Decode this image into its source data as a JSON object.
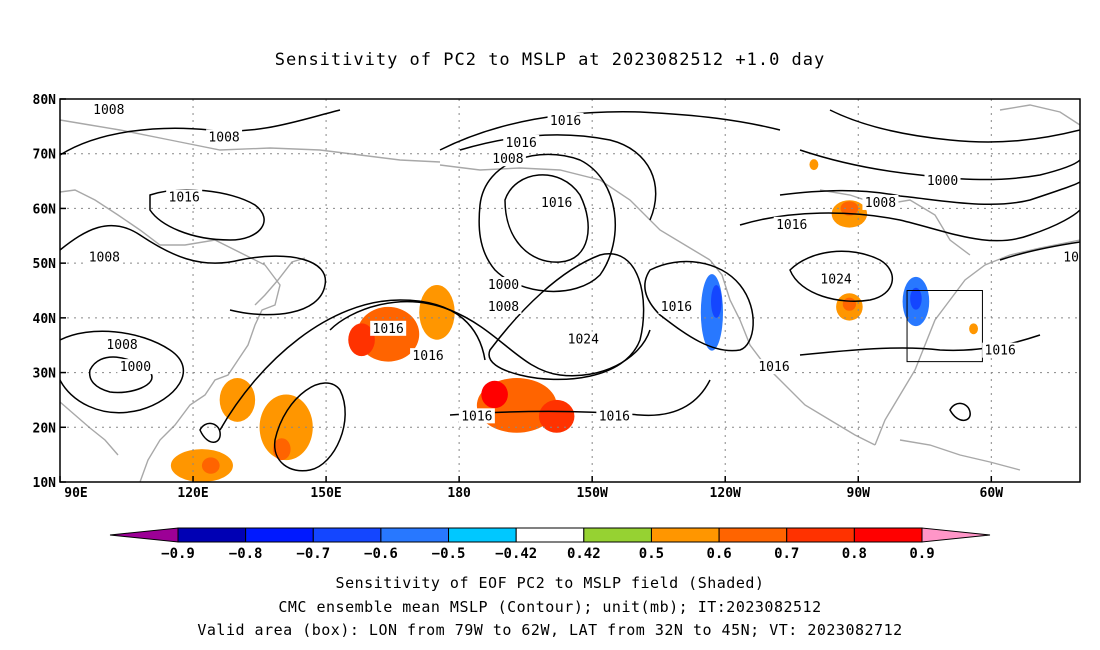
{
  "title": "Sensitivity of PC2 to MSLP at 2023082512 +1.0 day",
  "map": {
    "lat_range": [
      10,
      80
    ],
    "lon_range_east": [
      90,
      320
    ],
    "lat_ticks": [
      {
        "value": 80,
        "label": "80N"
      },
      {
        "value": 70,
        "label": "70N"
      },
      {
        "value": 60,
        "label": "60N"
      },
      {
        "value": 50,
        "label": "50N"
      },
      {
        "value": 40,
        "label": "40N"
      },
      {
        "value": 30,
        "label": "30N"
      },
      {
        "value": 20,
        "label": "20N"
      },
      {
        "value": 10,
        "label": "10N"
      }
    ],
    "lon_ticks": [
      {
        "value": 90,
        "label": "90E"
      },
      {
        "value": 120,
        "label": "120E"
      },
      {
        "value": 150,
        "label": "150E"
      },
      {
        "value": 180,
        "label": "180"
      },
      {
        "value": 210,
        "label": "150W"
      },
      {
        "value": 240,
        "label": "120W"
      },
      {
        "value": 270,
        "label": "90W"
      },
      {
        "value": 300,
        "label": "60W"
      }
    ],
    "gridlines": true,
    "valid_box": {
      "lon_west": 281,
      "lon_east": 298,
      "lat_south": 32,
      "lat_north": 45
    },
    "shaded_regions": [
      {
        "lon": 164,
        "lat": 37,
        "rx": 7,
        "ry": 5,
        "value": 0.6
      },
      {
        "lon": 175,
        "lat": 41,
        "rx": 4,
        "ry": 5,
        "value": 0.5
      },
      {
        "lon": 158,
        "lat": 36,
        "rx": 3,
        "ry": 3,
        "value": 0.7
      },
      {
        "lon": 193,
        "lat": 24,
        "rx": 9,
        "ry": 5,
        "value": 0.6
      },
      {
        "lon": 188,
        "lat": 26,
        "rx": 3,
        "ry": 2.5,
        "value": 0.8
      },
      {
        "lon": 202,
        "lat": 22,
        "rx": 4,
        "ry": 3,
        "value": 0.7
      },
      {
        "lon": 130,
        "lat": 25,
        "rx": 4,
        "ry": 4,
        "value": 0.5
      },
      {
        "lon": 141,
        "lat": 20,
        "rx": 6,
        "ry": 6,
        "value": 0.5
      },
      {
        "lon": 140,
        "lat": 16,
        "rx": 2,
        "ry": 2,
        "value": 0.6
      },
      {
        "lon": 122,
        "lat": 13,
        "rx": 7,
        "ry": 3,
        "value": 0.5
      },
      {
        "lon": 124,
        "lat": 13,
        "rx": 2,
        "ry": 1.5,
        "value": 0.6
      },
      {
        "lon": 237,
        "lat": 41,
        "rx": 2.5,
        "ry": 7,
        "value": -0.6
      },
      {
        "lon": 238,
        "lat": 43,
        "rx": 1.2,
        "ry": 3,
        "value": -0.7
      },
      {
        "lon": 283,
        "lat": 43,
        "rx": 3,
        "ry": 4.5,
        "value": -0.6
      },
      {
        "lon": 283,
        "lat": 43.5,
        "rx": 1.3,
        "ry": 2,
        "value": -0.7
      },
      {
        "lon": 268,
        "lat": 42,
        "rx": 3,
        "ry": 2.5,
        "value": 0.5
      },
      {
        "lon": 268,
        "lat": 42.5,
        "rx": 1.5,
        "ry": 1.2,
        "value": 0.6
      },
      {
        "lon": 268,
        "lat": 59,
        "rx": 4,
        "ry": 2.5,
        "value": 0.5
      },
      {
        "lon": 268,
        "lat": 60,
        "rx": 2,
        "ry": 1.3,
        "value": 0.6
      },
      {
        "lon": 260,
        "lat": 68,
        "rx": 1,
        "ry": 1,
        "value": 0.5
      },
      {
        "lon": 296,
        "lat": 38,
        "rx": 1,
        "ry": 1,
        "value": 0.5
      }
    ],
    "contour_labels": [
      {
        "lon": 101,
        "lat": 78,
        "text": "1008"
      },
      {
        "lon": 127,
        "lat": 73,
        "text": "1008"
      },
      {
        "lon": 118,
        "lat": 62,
        "text": "1016"
      },
      {
        "lon": 100,
        "lat": 51,
        "text": "1008"
      },
      {
        "lon": 104,
        "lat": 35,
        "text": "1008"
      },
      {
        "lon": 107,
        "lat": 31,
        "text": "1000"
      },
      {
        "lon": 204,
        "lat": 76,
        "text": "1016"
      },
      {
        "lon": 194,
        "lat": 72,
        "text": "1016"
      },
      {
        "lon": 191,
        "lat": 69,
        "text": "1008"
      },
      {
        "lon": 202,
        "lat": 61,
        "text": "1016"
      },
      {
        "lon": 190,
        "lat": 46,
        "text": "1000"
      },
      {
        "lon": 190,
        "lat": 42,
        "text": "1008"
      },
      {
        "lon": 208,
        "lat": 36,
        "text": "1024"
      },
      {
        "lon": 229,
        "lat": 42,
        "text": "1016"
      },
      {
        "lon": 251,
        "lat": 31,
        "text": "1016"
      },
      {
        "lon": 164,
        "lat": 38,
        "text": "1016"
      },
      {
        "lon": 173,
        "lat": 33,
        "text": "1016"
      },
      {
        "lon": 184,
        "lat": 22,
        "text": "1016"
      },
      {
        "lon": 215,
        "lat": 22,
        "text": "1016"
      },
      {
        "lon": 255,
        "lat": 57,
        "text": "1016"
      },
      {
        "lon": 275,
        "lat": 61,
        "text": "1008"
      },
      {
        "lon": 289,
        "lat": 65,
        "text": "1000"
      },
      {
        "lon": 265,
        "lat": 47,
        "text": "1024"
      },
      {
        "lon": 302,
        "lat": 34,
        "text": "1016"
      },
      {
        "lon": 318,
        "lat": 51,
        "text": "10"
      }
    ]
  },
  "colorbar": {
    "colors": [
      "#9c0096",
      "#0000b4",
      "#0019ff",
      "#1446ff",
      "#2878ff",
      "#00c8ff",
      "#ffffff",
      "#96d232",
      "#ff9600",
      "#ff6400",
      "#ff3200",
      "#ff0000",
      "#ff96c8"
    ],
    "labels": [
      "−0.9",
      "−0.8",
      "−0.7",
      "−0.6",
      "−0.5",
      "−0.42",
      "0.42",
      "0.5",
      "0.6",
      "0.7",
      "0.8",
      "0.9"
    ]
  },
  "footer": {
    "line1": "Sensitivity of EOF PC2 to MSLP field (Shaded)",
    "line2": "CMC ensemble mean MSLP (Contour); unit(mb); IT:2023082512",
    "line3": "Valid area (box): LON from 79W to 62W, LAT from 32N to 45N; VT: 2023082712"
  }
}
